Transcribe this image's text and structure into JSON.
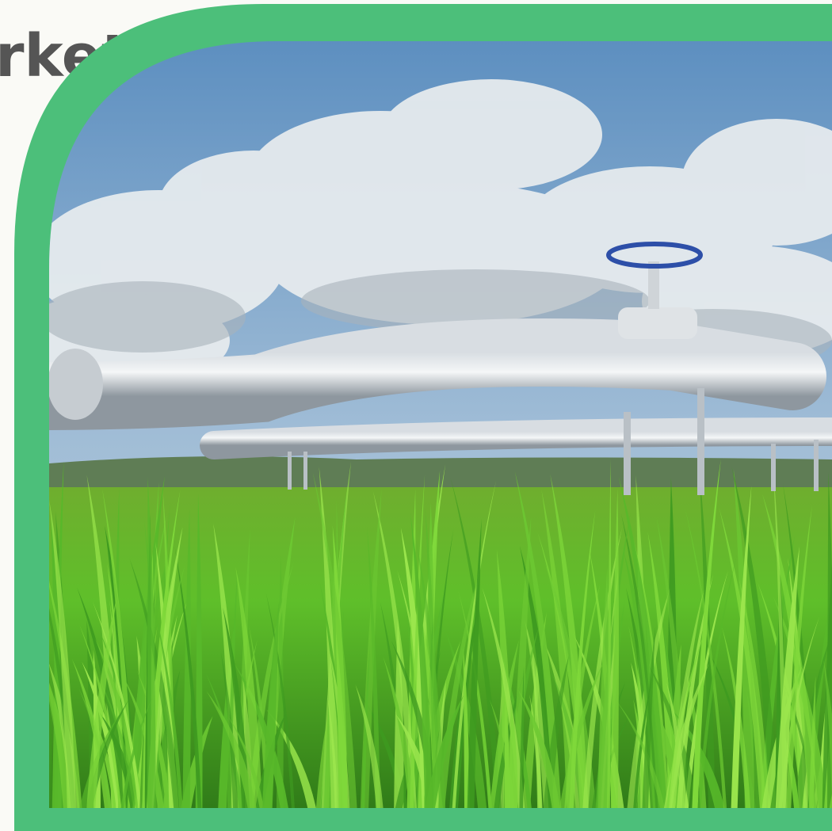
{
  "header": {
    "title": "rket"
  }
}
